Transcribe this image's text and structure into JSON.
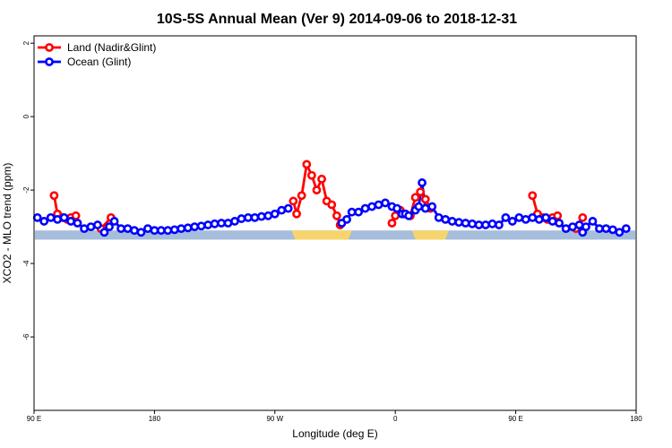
{
  "chart_data": {
    "type": "line",
    "title": "10S-5S Annual Mean (Ver 9)   2014-09-06 to 2018-12-31",
    "xlabel": "Longitude (deg E)",
    "ylabel": "XCO2 - MLO trend (ppm)",
    "xlim": [
      90,
      450
    ],
    "ylim": [
      -8,
      2.2
    ],
    "x_ticks": [
      {
        "value": 90,
        "label": "90 E"
      },
      {
        "value": 162,
        "label": "180"
      },
      {
        "value": 234,
        "label": "90 W"
      },
      {
        "value": 306,
        "label": "0"
      },
      {
        "value": 378,
        "label": "90 E"
      },
      {
        "value": 450,
        "label": "180"
      }
    ],
    "y_ticks": [
      {
        "value": 2,
        "label": "2"
      },
      {
        "value": 0,
        "label": "0"
      },
      {
        "value": -2,
        "label": "-2"
      },
      {
        "value": -4,
        "label": "-4"
      },
      {
        "value": -6,
        "label": "-6"
      }
    ],
    "map_band": {
      "y_top": -3.1,
      "y_bottom": -3.35,
      "ocean_color": "#a6bddb",
      "land_color": "#f7d56e",
      "land_segments": [
        [
          244,
          280
        ],
        [
          316,
          338
        ]
      ]
    },
    "legend": {
      "position": "top-left"
    },
    "series": [
      {
        "name": "Land (Nadir&Glint)",
        "color": "#ff0000",
        "segments": [
          [
            [
              102,
              -2.15
            ],
            [
              104,
              -2.65
            ],
            [
              107,
              -2.75
            ],
            [
              110,
              -2.8
            ],
            [
              112,
              -2.75
            ],
            [
              115,
              -2.7
            ]
          ],
          [
            [
              130,
              -3.05
            ],
            [
              136,
              -2.75
            ]
          ],
          [
            [
              245,
              -2.3
            ],
            [
              247,
              -2.65
            ],
            [
              250,
              -2.15
            ],
            [
              253,
              -1.3
            ],
            [
              256,
              -1.6
            ],
            [
              259,
              -2.0
            ],
            [
              262,
              -1.7
            ],
            [
              265,
              -2.3
            ],
            [
              268,
              -2.4
            ],
            [
              271,
              -2.7
            ],
            [
              273,
              -2.95
            ]
          ],
          [
            [
              304,
              -2.9
            ],
            [
              306,
              -2.7
            ],
            [
              309,
              -2.55
            ],
            [
              312,
              -2.65
            ],
            [
              315,
              -2.7
            ],
            [
              318,
              -2.2
            ],
            [
              321,
              -2.05
            ],
            [
              324,
              -2.25
            ],
            [
              327,
              -2.5
            ]
          ],
          [
            [
              388,
              -2.15
            ],
            [
              391,
              -2.65
            ],
            [
              394,
              -2.75
            ],
            [
              397,
              -2.8
            ],
            [
              400,
              -2.75
            ],
            [
              403,
              -2.7
            ]
          ],
          [
            [
              414,
              -3.05
            ],
            [
              418,
              -2.75
            ]
          ]
        ]
      },
      {
        "name": "Ocean (Glint)",
        "color": "#0000ff",
        "points": [
          [
            92,
            -2.75
          ],
          [
            96,
            -2.85
          ],
          [
            100,
            -2.75
          ],
          [
            104,
            -2.8
          ],
          [
            108,
            -2.75
          ],
          [
            112,
            -2.85
          ],
          [
            116,
            -2.9
          ],
          [
            120,
            -3.05
          ],
          [
            124,
            -3.0
          ],
          [
            128,
            -2.95
          ],
          [
            132,
            -3.15
          ],
          [
            135,
            -3.0
          ],
          [
            138,
            -2.85
          ],
          [
            142,
            -3.05
          ],
          [
            146,
            -3.05
          ],
          [
            150,
            -3.1
          ],
          [
            154,
            -3.15
          ],
          [
            158,
            -3.05
          ],
          [
            162,
            -3.1
          ],
          [
            166,
            -3.1
          ],
          [
            170,
            -3.1
          ],
          [
            174,
            -3.08
          ],
          [
            178,
            -3.05
          ],
          [
            182,
            -3.03
          ],
          [
            186,
            -3.0
          ],
          [
            190,
            -2.98
          ],
          [
            194,
            -2.95
          ],
          [
            198,
            -2.92
          ],
          [
            202,
            -2.9
          ],
          [
            206,
            -2.9
          ],
          [
            210,
            -2.85
          ],
          [
            214,
            -2.78
          ],
          [
            218,
            -2.75
          ],
          [
            222,
            -2.75
          ],
          [
            226,
            -2.72
          ],
          [
            230,
            -2.7
          ],
          [
            234,
            -2.65
          ],
          [
            238,
            -2.55
          ],
          [
            242,
            -2.5
          ],
          [
            274,
            -2.9
          ],
          [
            277,
            -2.8
          ],
          [
            280,
            -2.6
          ],
          [
            284,
            -2.6
          ],
          [
            288,
            -2.5
          ],
          [
            292,
            -2.45
          ],
          [
            296,
            -2.4
          ],
          [
            300,
            -2.35
          ],
          [
            304,
            -2.45
          ],
          [
            307,
            -2.5
          ],
          [
            310,
            -2.65
          ],
          [
            312,
            -2.65
          ],
          [
            314,
            -2.7
          ],
          [
            318,
            -2.55
          ],
          [
            320,
            -2.45
          ],
          [
            322,
            -1.8
          ],
          [
            324,
            -2.5
          ],
          [
            328,
            -2.45
          ],
          [
            332,
            -2.75
          ],
          [
            336,
            -2.8
          ],
          [
            340,
            -2.85
          ],
          [
            344,
            -2.88
          ],
          [
            348,
            -2.9
          ],
          [
            352,
            -2.92
          ],
          [
            356,
            -2.95
          ],
          [
            360,
            -2.95
          ],
          [
            364,
            -2.92
          ],
          [
            368,
            -2.95
          ],
          [
            372,
            -2.75
          ],
          [
            376,
            -2.85
          ],
          [
            380,
            -2.75
          ],
          [
            384,
            -2.8
          ],
          [
            388,
            -2.75
          ],
          [
            392,
            -2.8
          ],
          [
            396,
            -2.75
          ],
          [
            400,
            -2.85
          ],
          [
            404,
            -2.9
          ],
          [
            408,
            -3.05
          ],
          [
            412,
            -3.0
          ],
          [
            416,
            -2.95
          ],
          [
            418,
            -3.15
          ],
          [
            420,
            -3.0
          ],
          [
            424,
            -2.85
          ],
          [
            428,
            -3.05
          ],
          [
            432,
            -3.05
          ],
          [
            436,
            -3.08
          ],
          [
            440,
            -3.15
          ],
          [
            444,
            -3.05
          ]
        ]
      }
    ]
  }
}
